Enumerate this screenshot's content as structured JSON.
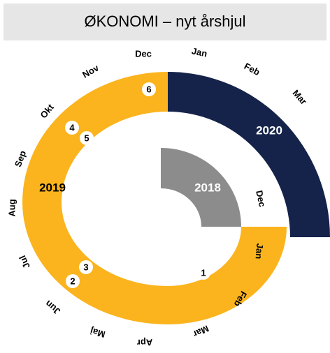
{
  "header": {
    "title": "ØKONOMI – nyt årshjul"
  },
  "years": [
    "2020",
    "2019",
    "2018"
  ],
  "months": [
    "Dec",
    "Jan",
    "Feb",
    "Mar",
    "Nov",
    "Okt",
    "Sep",
    "Aug",
    "Jul",
    "Jun",
    "Maj",
    "Apr",
    "Mar",
    "Feb",
    "Jan",
    "Dec"
  ],
  "markers": [
    "6",
    "4",
    "5",
    "3",
    "2",
    "1"
  ]
}
